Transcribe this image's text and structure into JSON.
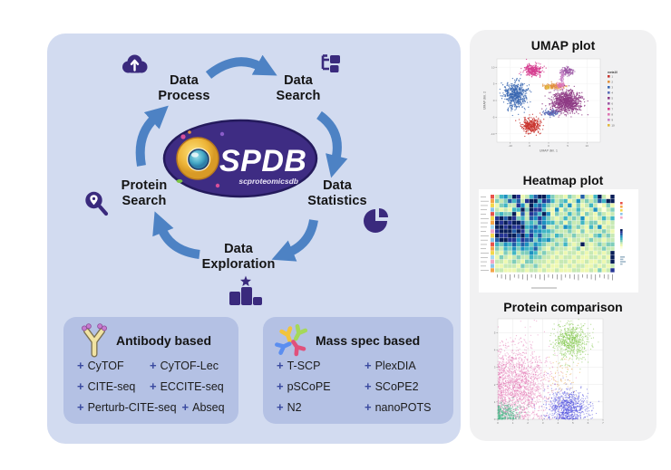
{
  "main_panel": {
    "bullet": "+",
    "logo": {
      "title": "SPDB",
      "subtitle": "scproteomicsdb"
    },
    "cycle_nodes": [
      {
        "label": "Data Process",
        "icon": "cloud-upload-icon"
      },
      {
        "label": "Data Search",
        "icon": "folder-tree-icon"
      },
      {
        "label": "Data Statistics",
        "icon": "pie-chart-icon"
      },
      {
        "label": "Data Exploration",
        "icon": "podium-star-icon"
      },
      {
        "label": "Protein Search",
        "icon": "search-location-icon"
      }
    ],
    "antibody_box": {
      "title": "Antibody based",
      "items": [
        "CyTOF",
        "CyTOF-Lec",
        "CITE-seq",
        "ECCITE-seq",
        "Perturb-CITE-seq",
        "Abseq"
      ]
    },
    "mass_spec_box": {
      "title": "Mass spec based",
      "items": [
        "T-SCP",
        "PlexDIA",
        "pSCoPE",
        "SCoPE2",
        "N2",
        "nanoPOTS"
      ]
    }
  },
  "side_panel": {
    "sections": [
      {
        "title": "UMAP plot"
      },
      {
        "title": "Heatmap plot"
      },
      {
        "title": "Protein comparison"
      }
    ]
  },
  "colors": {
    "panel_bg": "#d2dbf0",
    "box_bg": "#b4c1e4",
    "side_bg": "#f1f1f2",
    "arrow": "#4d82c4",
    "icon": "#3a2a7d",
    "logo_bg": "#3e2c83"
  },
  "chart_data": [
    {
      "type": "scatter",
      "title": "UMAP plot",
      "xlabel": "UMAP dim. 1",
      "ylabel": "UMAP dim. 2",
      "xlim": [
        -13.5,
        13.5
      ],
      "ylim": [
        -12.5,
        12.5
      ],
      "xticks": [
        -10,
        -5,
        0,
        5,
        10
      ],
      "yticks": [
        -10,
        -5,
        0,
        5,
        10
      ],
      "grid": true,
      "legend_title": "meta10",
      "legend_position": "right",
      "legend_labels": [
        "1",
        "2",
        "3",
        "4",
        "5",
        "6",
        "7",
        "8",
        "9",
        "10"
      ],
      "clusters": [
        {
          "label": "1",
          "color": "#c9352f",
          "cx": -4.6,
          "cy": -7.6,
          "sx": 1.15,
          "sy": 1.1,
          "n": 340
        },
        {
          "label": "2",
          "color": "#e0913f",
          "cx": 1.3,
          "cy": 4.35,
          "sx": 1.35,
          "sy": 0.4,
          "n": 150
        },
        {
          "label": "3",
          "color": "#3a67b2",
          "cx": -8.7,
          "cy": 1.9,
          "sx": 1.5,
          "sy": 1.95,
          "n": 560
        },
        {
          "label": "4",
          "color": "#5a6db8",
          "cx": 0.6,
          "cy": -3.7,
          "sx": 1.05,
          "sy": 0.45,
          "n": 150
        },
        {
          "label": "5",
          "color": "#8e3b85",
          "cx": 4.7,
          "cy": -0.4,
          "sx": 1.95,
          "sy": 1.65,
          "n": 950
        },
        {
          "label": "6",
          "color": "#9c59a6",
          "cx": 4.9,
          "cy": 8.9,
          "sx": 0.75,
          "sy": 0.65,
          "n": 140
        },
        {
          "label": "7",
          "color": "#d64090",
          "cx": -4.2,
          "cy": 9.1,
          "sx": 1.15,
          "sy": 0.85,
          "n": 300
        },
        {
          "label": "8",
          "color": "#df75b4",
          "cx": 3.2,
          "cy": 4.6,
          "sx": 0.5,
          "sy": 0.4,
          "n": 70
        },
        {
          "label": "9",
          "color": "#c87fc4",
          "cx": 3.5,
          "cy": 6.9,
          "sx": 0.3,
          "sy": 1.0,
          "n": 60
        },
        {
          "label": "10",
          "color": "#e3b93e",
          "cx": -0.3,
          "cy": 3.9,
          "sx": 0.3,
          "sy": 0.3,
          "n": 30
        }
      ]
    },
    {
      "type": "heatmap",
      "title": "Heatmap plot",
      "palette": [
        "#ffffd9",
        "#edf8b1",
        "#c7e9b4",
        "#7fcdbb",
        "#41b6c4",
        "#1d91c0",
        "#225ea8",
        "#253494",
        "#081d58"
      ],
      "n_rows": 18,
      "n_cols": 28,
      "rows": [
        "2453871246885322132162148209",
        "3236462788476423412523236488",
        "1342275295653224251312420131",
        "2121448387742151322421252023",
        "3433816276495132242313213212",
        "7868734265753212423251212424",
        "8797886343654423132242331212",
        "9879778456462232542321425122",
        "7988697365544322232131222321",
        "8778968574633243223222134232",
        "6897757663545322312212322122",
        "4354646535432232421292123233",
        "3243535446321322212312122322",
        "2132423354232212122121212129",
        "1321232243322121221211221219",
        "2212321332221212212112112128",
        "1122213223212112121221121212",
        "2211122122121121112211213127"
      ],
      "row_colors": [
        "#e8534a",
        "#f5a54a",
        "#f2d74b",
        "#8bc5ea",
        "#e8534a",
        "#f2d74b",
        "#f5a54a",
        "#a6d9f0",
        "#f2a7c5",
        "#f2d74b",
        "#8bc5ea",
        "#e8534a",
        "#f5a54a",
        "#f2d74b",
        "#a6d9f0",
        "#f2a7c5",
        "#8bc5ea",
        "#f5a54a"
      ]
    },
    {
      "type": "scatter",
      "title": "Protein comparison",
      "xlim": [
        0,
        7
      ],
      "ylim": [
        0,
        5.8
      ],
      "xticks": [
        0,
        1,
        2,
        3,
        4,
        5,
        6,
        7
      ],
      "yticks": [
        0,
        1,
        2,
        3,
        4,
        5
      ],
      "grid": true,
      "clusters": [
        {
          "label": "pink",
          "color": "#e066aa",
          "cx": 1.25,
          "cy": 1.9,
          "sx": 1.05,
          "sy": 1.15,
          "n": 1900,
          "alpha": 0.45,
          "fold": true
        },
        {
          "label": "teal",
          "color": "#49b98a",
          "cx": 0.45,
          "cy": 0.35,
          "sx": 0.55,
          "sy": 0.32,
          "n": 420,
          "alpha": 0.5,
          "fold": true
        },
        {
          "label": "green",
          "color": "#7cc544",
          "cx": 4.9,
          "cy": 4.5,
          "sx": 0.55,
          "sy": 0.5,
          "n": 650,
          "alpha": 0.55
        },
        {
          "label": "blue",
          "color": "#3b3bdc",
          "cx": 4.6,
          "cy": 0.65,
          "sx": 0.68,
          "sy": 0.5,
          "n": 800,
          "alpha": 0.5,
          "fold": true
        },
        {
          "label": "orange",
          "color": "#e8a23f",
          "cx": 4.3,
          "cy": 2.4,
          "sx": 0.5,
          "sy": 0.65,
          "n": 80,
          "alpha": 0.5
        }
      ]
    }
  ]
}
